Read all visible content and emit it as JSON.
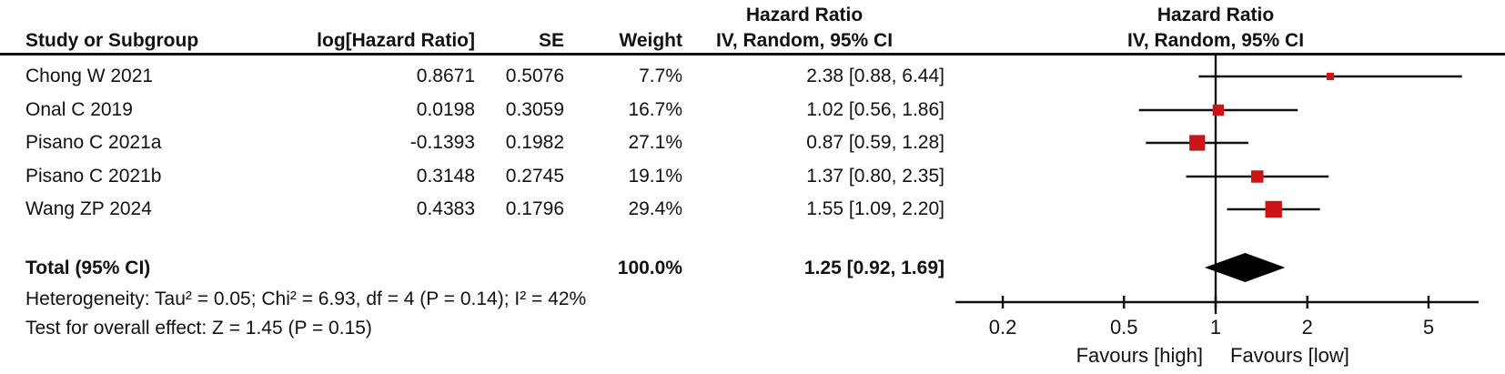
{
  "table": {
    "headers": {
      "study": "Study or Subgroup",
      "log_hr": "log[Hazard Ratio]",
      "se": "SE",
      "weight": "Weight",
      "effect_line1": "Hazard Ratio",
      "effect_line2": "IV, Random, 95% CI"
    },
    "studies": [
      {
        "name": "Chong W 2021",
        "log_hr": "0.8671",
        "se": "0.5076",
        "weight": "7.7%",
        "ci_text": "2.38 [0.88, 6.44]"
      },
      {
        "name": "Onal C 2019",
        "log_hr": "0.0198",
        "se": "0.3059",
        "weight": "16.7%",
        "ci_text": "1.02 [0.56, 1.86]"
      },
      {
        "name": "Pisano C 2021a",
        "log_hr": "-0.1393",
        "se": "0.1982",
        "weight": "27.1%",
        "ci_text": "0.87 [0.59, 1.28]"
      },
      {
        "name": "Pisano C 2021b",
        "log_hr": "0.3148",
        "se": "0.2745",
        "weight": "19.1%",
        "ci_text": "1.37 [0.80, 2.35]"
      },
      {
        "name": "Wang ZP 2024",
        "log_hr": "0.4383",
        "se": "0.1796",
        "weight": "29.4%",
        "ci_text": "1.55 [1.09, 2.20]"
      }
    ],
    "total": {
      "label": "Total (95% CI)",
      "weight": "100.0%",
      "ci_text": "1.25 [0.92, 1.69]"
    },
    "footnotes": {
      "heterogeneity": "Heterogeneity: Tau² = 0.05; Chi² = 6.93, df = 4 (P = 0.14); I² = 42%",
      "overall_effect": "Test for overall effect: Z = 1.45 (P = 0.15)"
    }
  },
  "chart_data": {
    "type": "forest",
    "scale": "log",
    "title_line1": "Hazard Ratio",
    "title_line2": "IV, Random, 95% CI",
    "null_value": 1,
    "xlim": [
      0.14,
      7.3
    ],
    "axis_ticks": [
      "0.2",
      "0.5",
      "1",
      "2",
      "5"
    ],
    "favours_left": "Favours [high]",
    "favours_right": "Favours [low]",
    "marker_color": "#CC1414",
    "line_color": "#111111",
    "diamond_color": "#000000",
    "studies": [
      {
        "name": "Chong W 2021",
        "hr": 2.38,
        "ci_low": 0.88,
        "ci_high": 6.44,
        "weight_pct": 7.7
      },
      {
        "name": "Onal C 2019",
        "hr": 1.02,
        "ci_low": 0.56,
        "ci_high": 1.86,
        "weight_pct": 16.7
      },
      {
        "name": "Pisano C 2021a",
        "hr": 0.87,
        "ci_low": 0.59,
        "ci_high": 1.28,
        "weight_pct": 27.1
      },
      {
        "name": "Pisano C 2021b",
        "hr": 1.37,
        "ci_low": 0.8,
        "ci_high": 2.35,
        "weight_pct": 19.1
      },
      {
        "name": "Wang ZP 2024",
        "hr": 1.55,
        "ci_low": 1.09,
        "ci_high": 2.2,
        "weight_pct": 29.4
      }
    ],
    "total": {
      "hr": 1.25,
      "ci_low": 0.92,
      "ci_high": 1.69,
      "weight_pct": 100.0
    }
  }
}
